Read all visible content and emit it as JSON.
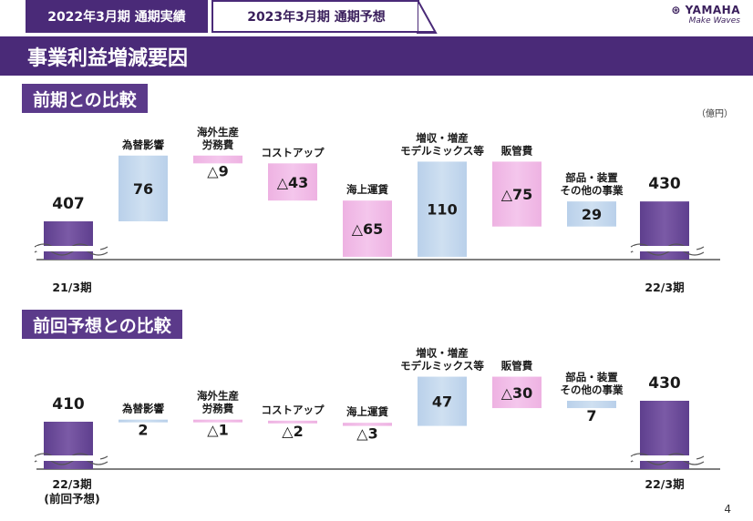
{
  "header": {
    "tab_active": "2022年3月期 通期実績",
    "tab_inactive": "2023年3月期 通期予想",
    "brand_name": "YAMAHA",
    "brand_tagline": "Make Waves",
    "title": "事業利益増減要因"
  },
  "unit_label": "（億円）",
  "page_number": "4",
  "colors": {
    "purple_end": "#7b5aa6",
    "blue_pos": "#cfe0f1",
    "pink_neg": "#f4c6ec",
    "title_purple": "#4a2a78"
  },
  "chart_data": [
    {
      "type": "waterfall",
      "title": "前期との比較",
      "start": {
        "label": "21/3期",
        "value": 407,
        "text": "407"
      },
      "end": {
        "label": "22/3期",
        "value": 430,
        "text": "430"
      },
      "steps": [
        {
          "label": [
            "為替影響"
          ],
          "value": 76,
          "text": "76",
          "sign": "positive"
        },
        {
          "label": [
            "海外生産",
            "労務費"
          ],
          "value": -9,
          "text": "△9",
          "sign": "negative"
        },
        {
          "label": [
            "コストアップ"
          ],
          "value": -43,
          "text": "△43",
          "sign": "negative"
        },
        {
          "label": [
            "海上運賃"
          ],
          "value": -65,
          "text": "△65",
          "sign": "negative"
        },
        {
          "label": [
            "増収・増産",
            "モデルミックス等"
          ],
          "value": 110,
          "text": "110",
          "sign": "positive"
        },
        {
          "label": [
            "販管費"
          ],
          "value": -75,
          "text": "△75",
          "sign": "negative"
        },
        {
          "label": [
            "部品・装置",
            "その他の事業"
          ],
          "value": 29,
          "text": "29",
          "sign": "positive"
        }
      ]
    },
    {
      "type": "waterfall",
      "title": "前回予想との比較",
      "start": {
        "label": "22/3期",
        "sublabel": "(前回予想)",
        "value": 410,
        "text": "410"
      },
      "end": {
        "label": "22/3期",
        "value": 430,
        "text": "430"
      },
      "steps": [
        {
          "label": [
            "為替影響"
          ],
          "value": 2,
          "text": "2",
          "sign": "positive"
        },
        {
          "label": [
            "海外生産",
            "労務費"
          ],
          "value": -1,
          "text": "△1",
          "sign": "negative"
        },
        {
          "label": [
            "コストアップ"
          ],
          "value": -2,
          "text": "△2",
          "sign": "negative"
        },
        {
          "label": [
            "海上運賃"
          ],
          "value": -3,
          "text": "△3",
          "sign": "negative"
        },
        {
          "label": [
            "増収・増産",
            "モデルミックス等"
          ],
          "value": 47,
          "text": "47",
          "sign": "positive"
        },
        {
          "label": [
            "販管費"
          ],
          "value": -30,
          "text": "△30",
          "sign": "negative"
        },
        {
          "label": [
            "部品・装置",
            "その他の事業"
          ],
          "value": 7,
          "text": "7",
          "sign": "positive"
        }
      ]
    }
  ]
}
